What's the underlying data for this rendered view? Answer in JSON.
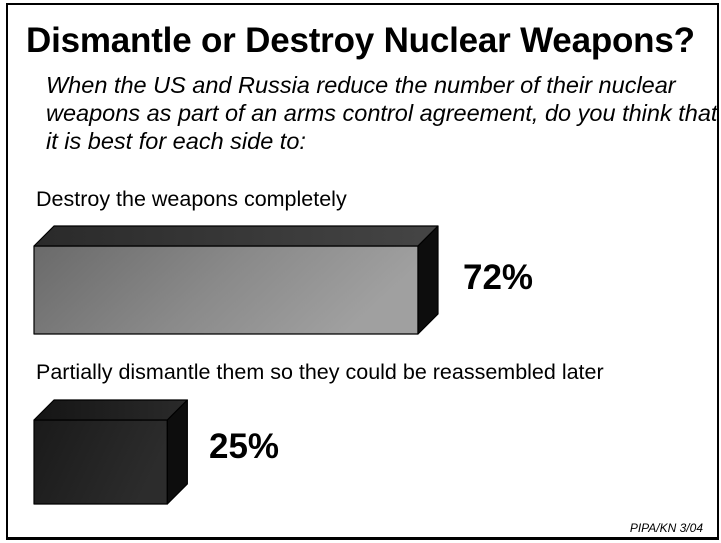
{
  "chart_data": {
    "type": "bar",
    "title": "Dismantle or Destroy Nuclear Weapons?",
    "subtitle": "When the US and Russia reduce the number of their nuclear weapons as part of an arms control agreement, do you think that it is best for each side to:",
    "categories": [
      "Destroy the weapons completely",
      "Partially dismantle them so they could be reassembled later"
    ],
    "values": [
      72,
      25
    ],
    "value_labels": [
      "72%",
      "25%"
    ],
    "unit": "%",
    "orientation": "horizontal",
    "xlim": [
      0,
      72
    ],
    "grid": false,
    "colors": [
      "#7f7f7f",
      "#202020"
    ]
  },
  "source": "PIPA/KN 3/04"
}
